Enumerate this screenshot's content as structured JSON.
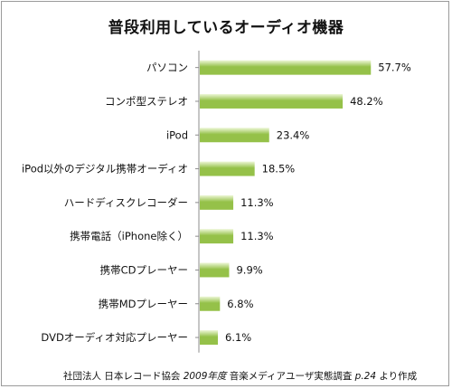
{
  "chart_data": {
    "type": "bar",
    "orientation": "horizontal",
    "title": "普段利用しているオーディオ機器",
    "categories": [
      "パソコン",
      "コンポ型ステレオ",
      "iPod",
      "iPod以外のデジタル携帯オーディオ",
      "ハードディスクレコーダー",
      "携帯電話（iPhone除く）",
      "携帯CDプレーヤー",
      "携帯MDプレーヤー",
      "DVDオーディオ対応プレーヤー"
    ],
    "values": [
      57.7,
      48.2,
      23.4,
      18.5,
      11.3,
      11.3,
      9.9,
      6.8,
      6.1
    ],
    "value_labels": [
      "57.7%",
      "48.2%",
      "23.4%",
      "18.5%",
      "11.3%",
      "11.3%",
      "9.9%",
      "6.8%",
      "6.1%"
    ],
    "xlim": [
      0,
      100
    ],
    "grid": false,
    "legend": "none",
    "bar_color_light": "#eef7d8",
    "bar_color_dark": "#95c149"
  },
  "source": {
    "org": "社団法人 日本レコード協会 ",
    "year_italic": "2009年度",
    "survey": " 音楽メディアユーザ実態調査 ",
    "page_italic": "p.24",
    "suffix": " より作成"
  }
}
